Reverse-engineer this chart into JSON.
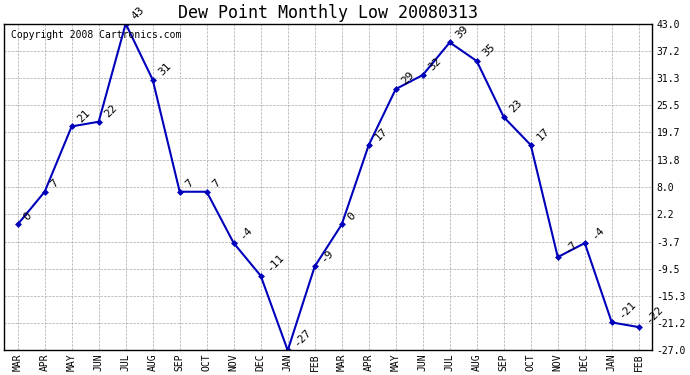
{
  "title": "Dew Point Monthly Low 20080313",
  "copyright": "Copyright 2008 Cartronics.com",
  "months": [
    "MAR",
    "APR",
    "MAY",
    "JUN",
    "JUL",
    "AUG",
    "SEP",
    "OCT",
    "NOV",
    "DEC",
    "JAN",
    "FEB",
    "MAR",
    "APR",
    "MAY",
    "JUN",
    "JUL",
    "AUG",
    "SEP",
    "OCT",
    "NOV",
    "DEC",
    "JAN",
    "FEB"
  ],
  "values": [
    0,
    7,
    21,
    22,
    43,
    31,
    7,
    7,
    -4,
    -11,
    -27,
    -9,
    0,
    17,
    29,
    32,
    39,
    35,
    23,
    17,
    -7,
    -4,
    -21,
    -22
  ],
  "labels": [
    "0",
    "7",
    "21",
    "22",
    "43",
    "31",
    "7",
    "7",
    "-4",
    "-11",
    "-27",
    "-9",
    "0",
    "17",
    "29",
    "32",
    "39",
    "35",
    "23",
    "17",
    "-7",
    "-4",
    "-21",
    "-22"
  ],
  "yticks": [
    43.0,
    37.2,
    31.3,
    25.5,
    19.7,
    13.8,
    8.0,
    2.2,
    -3.7,
    -9.5,
    -15.3,
    -21.2,
    -27.0
  ],
  "ytick_labels": [
    "43.0",
    "37.2",
    "31.3",
    "25.5",
    "19.7",
    "13.8",
    "8.0",
    "2.2",
    "-3.7",
    "-9.5",
    "-15.3",
    "-21.2",
    "-27.0"
  ],
  "line_color": "#0000bb",
  "marker_color": "#0000bb",
  "bg_color": "#ffffff",
  "grid_color": "#aaaaaa",
  "title_fontsize": 12,
  "tick_fontsize": 7,
  "annotation_fontsize": 8,
  "copyright_fontsize": 7,
  "ylim_min": -27.0,
  "ylim_max": 43.0
}
